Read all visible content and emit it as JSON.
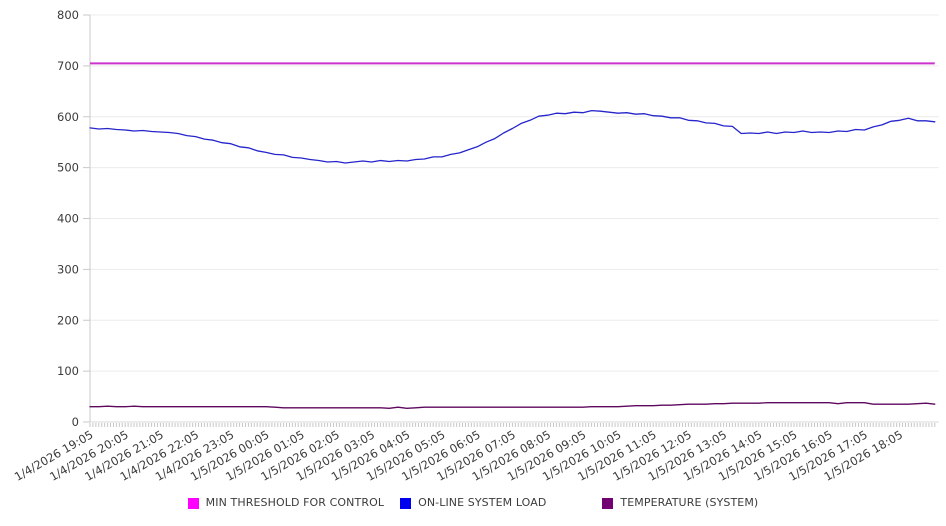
{
  "chart_data": {
    "type": "line",
    "title": "",
    "xlabel": "",
    "ylabel": "",
    "legend_position": "bottom",
    "grid": true,
    "y_axis": {
      "min": 0,
      "max": 800,
      "tick_step": 100,
      "tick_labels": [
        "0",
        "100",
        "200",
        "300",
        "400",
        "500",
        "600",
        "700",
        "800"
      ]
    },
    "x_axis": {
      "minor_tick_interval_minutes": 5,
      "points_per_hour": 4,
      "tick_labels": [
        "1/4/2026 19:05",
        "1/4/2026 20:05",
        "1/4/2026 21:05",
        "1/4/2026 22:05",
        "1/4/2026 23:05",
        "1/5/2026 00:05",
        "1/5/2026 01:05",
        "1/5/2026 02:05",
        "1/5/2026 03:05",
        "1/5/2026 04:05",
        "1/5/2026 05:05",
        "1/5/2026 06:05",
        "1/5/2026 07:05",
        "1/5/2026 08:05",
        "1/5/2026 09:05",
        "1/5/2026 10:05",
        "1/5/2026 11:05",
        "1/5/2026 12:05",
        "1/5/2026 13:05",
        "1/5/2026 14:05",
        "1/5/2026 15:05",
        "1/5/2026 16:05",
        "1/5/2026 17:05",
        "1/5/2026 18:05"
      ]
    },
    "series": [
      {
        "name": "MIN THRESHOLD FOR CONTROL",
        "type": "threshold",
        "color": "#cc33cc",
        "swatch_color": "#ff00ff",
        "constant_value": 705
      },
      {
        "name": "ON-LINE SYSTEM LOAD",
        "type": "line",
        "color": "#2525cb",
        "swatch_color": "#0000ee",
        "values": [
          578,
          576,
          577,
          575,
          574,
          572,
          573,
          571,
          570,
          569,
          567,
          563,
          561,
          556,
          554,
          549,
          547,
          541,
          539,
          533,
          530,
          526,
          525,
          520,
          519,
          516,
          514,
          511,
          512,
          509,
          511,
          513,
          511,
          514,
          512,
          514,
          513,
          516,
          517,
          521,
          521,
          526,
          529,
          535,
          541,
          550,
          557,
          568,
          577,
          587,
          593,
          601,
          603,
          607,
          606,
          609,
          608,
          612,
          611,
          609,
          607,
          608,
          605,
          606,
          602,
          601,
          598,
          598,
          593,
          592,
          588,
          587,
          582,
          581,
          567,
          568,
          567,
          570,
          567,
          570,
          569,
          572,
          569,
          570,
          569,
          572,
          571,
          575,
          574,
          580,
          584,
          591,
          593,
          597,
          592,
          592,
          590
        ]
      },
      {
        "name": "TEMPERATURE (SYSTEM)",
        "type": "line",
        "color": "#5e085e",
        "swatch_color": "#730073",
        "values": [
          30,
          30,
          31,
          30,
          30,
          31,
          30,
          30,
          30,
          30,
          30,
          30,
          30,
          30,
          30,
          30,
          30,
          30,
          30,
          30,
          30,
          29,
          28,
          28,
          28,
          28,
          28,
          28,
          28,
          28,
          28,
          28,
          28,
          28,
          27,
          29,
          27,
          28,
          29,
          29,
          29,
          29,
          29,
          29,
          29,
          29,
          29,
          29,
          29,
          29,
          29,
          29,
          29,
          29,
          29,
          29,
          29,
          30,
          30,
          30,
          30,
          31,
          32,
          32,
          32,
          33,
          33,
          34,
          35,
          35,
          35,
          36,
          36,
          37,
          37,
          37,
          37,
          38,
          38,
          38,
          38,
          38,
          38,
          38,
          38,
          36,
          38,
          38,
          38,
          35,
          35,
          35,
          35,
          35,
          36,
          37,
          35
        ]
      }
    ]
  }
}
